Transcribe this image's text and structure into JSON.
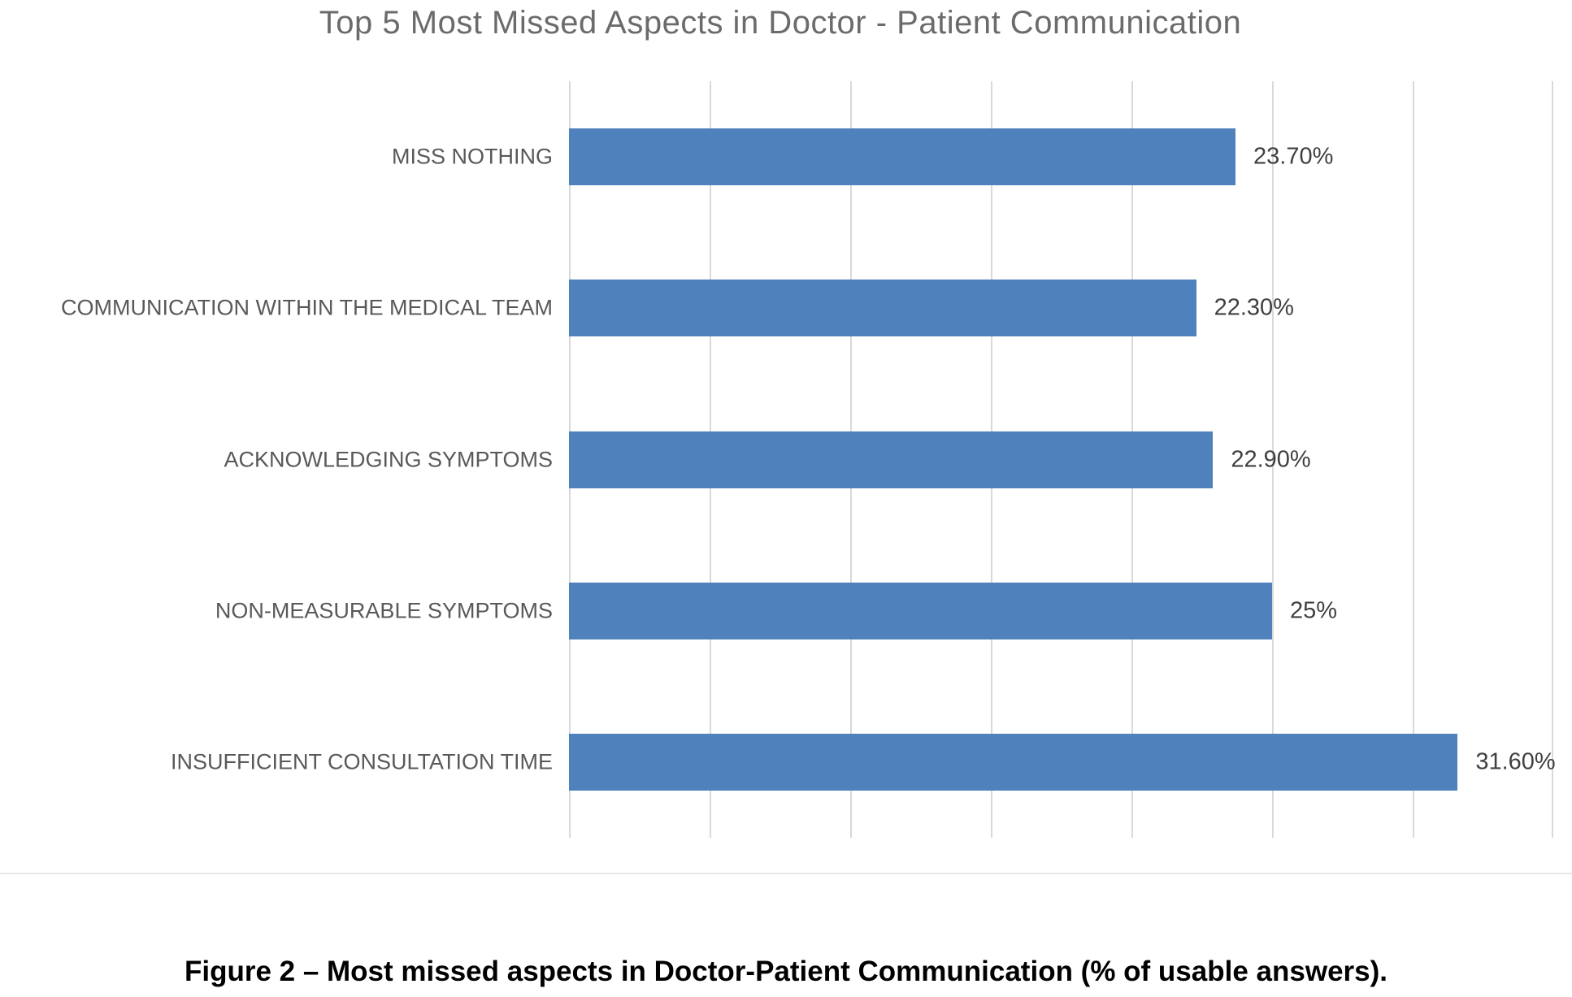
{
  "chart_data": {
    "type": "bar",
    "orientation": "horizontal",
    "title": "Top 5 Most Missed Aspects in Doctor - Patient Communication",
    "categories": [
      "MISS NOTHING",
      "COMMUNICATION WITHIN THE MEDICAL TEAM",
      "ACKNOWLEDGING SYMPTOMS",
      "NON-MEASURABLE SYMPTOMS",
      "INSUFFICIENT CONSULTATION TIME"
    ],
    "values": [
      23.7,
      22.3,
      22.9,
      25,
      31.6
    ],
    "value_labels": [
      "23.70%",
      "22.30%",
      "22.90%",
      "25%",
      "31.60%"
    ],
    "xlabel": "",
    "ylabel": "",
    "xlim": [
      0,
      35
    ],
    "gridline_step": 5,
    "grid": "on",
    "axis_tick_labels_visible": false,
    "legend": "none",
    "bar_color": "#4f81bd",
    "gridline_color": "#d9d9d9",
    "title_color": "#6b6b6b",
    "category_label_color": "#595959",
    "value_label_color": "#404040"
  },
  "caption": {
    "text": "Figure 2 – Most missed aspects in Doctor-Patient Communication (% of usable answers)."
  }
}
